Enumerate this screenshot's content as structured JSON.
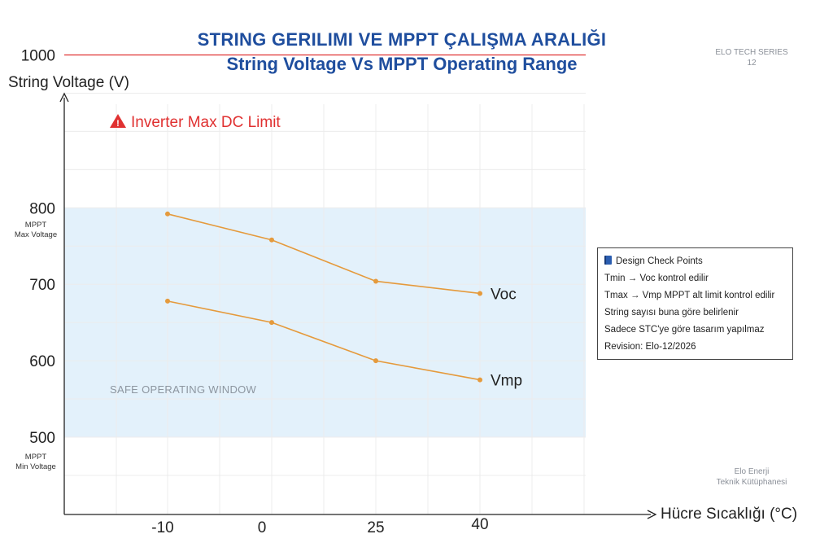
{
  "header": {
    "title_tr": "STRING GERILIMI VE MPPT ÇALIŞMA ARALIĞI",
    "title_en": "String Voltage Vs MPPT Operating Range",
    "series_badge_line1": "ELO TECH SERIES",
    "series_badge_line2": "12"
  },
  "chart_data": {
    "type": "line",
    "title": "String Voltage Vs MPPT Operating Range",
    "ylabel": "String Voltage (V)",
    "xlabel": "Hücre Sıcaklığı (°C)",
    "categories": [
      "-10",
      "0",
      "25",
      "40"
    ],
    "y_ticks": [
      "1000",
      "800",
      "700",
      "600",
      "500"
    ],
    "ylim": [
      400,
      1100
    ],
    "grid": true,
    "series": [
      {
        "name": "Voc",
        "values": [
          792,
          758,
          704,
          688
        ],
        "color": "#e59a3c"
      },
      {
        "name": "Vmp",
        "values": [
          678,
          650,
          600,
          575
        ],
        "color": "#e59a3c"
      }
    ],
    "limit_line": {
      "value": 1000,
      "label": "Inverter Max DC Limit",
      "color": "#e03131"
    },
    "band": {
      "from": 500,
      "to": 800,
      "label": "SAFE OPERATING WINDOW",
      "color": "#e3f1fb"
    },
    "band_labels": {
      "max_line1": "MPPT",
      "max_line2": "Max Voltage",
      "min_line1": "MPPT",
      "min_line2": "Min Voltage"
    }
  },
  "checkpoints": {
    "title": "Design Check Points",
    "icon": "book-icon",
    "items": [
      "Tmin → Voc kontrol edilir",
      "Tmax → Vmp MPPT alt limit kontrol edilir",
      "String sayısı buna göre belirlenir",
      "Sadece STC'ye göre tasarım yapılmaz",
      "Revision: Elo-12/2026"
    ]
  },
  "footer": {
    "line1": "Elo Enerji",
    "line2": "Teknik Kütüphanesi"
  }
}
